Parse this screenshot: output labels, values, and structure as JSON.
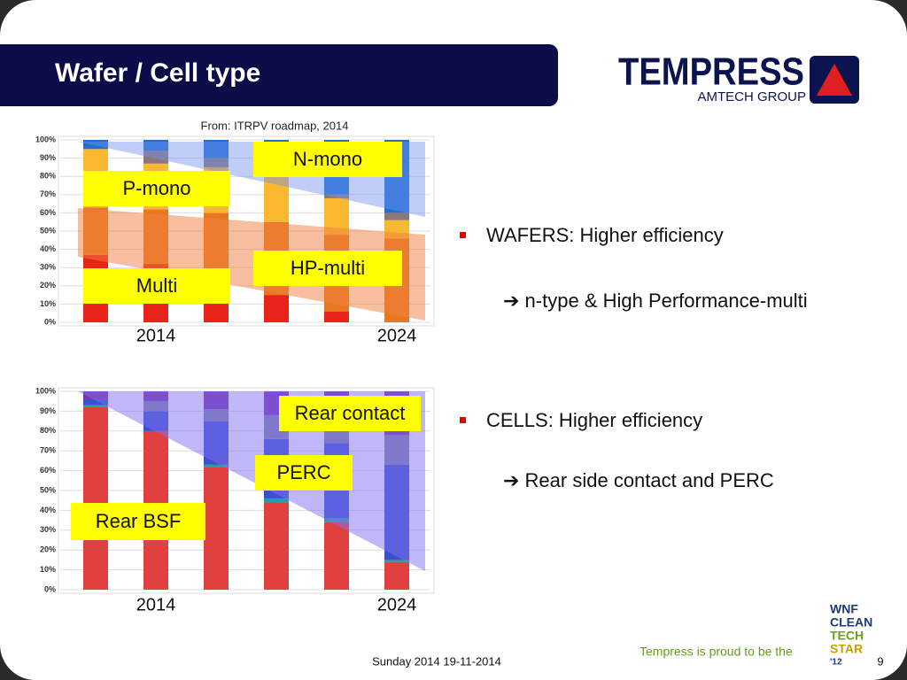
{
  "header": {
    "title": "Wafer / Cell type",
    "logo": "TEMPRESS",
    "logo_sub": "AMTECH GROUP"
  },
  "source": "From: ITRPV roadmap, 2014",
  "bullets": [
    {
      "text": "WAFERS: Higher efficiency",
      "sub": "➔ n-type &  High Performance-multi"
    },
    {
      "text": "CELLS:  Higher efficiency",
      "sub": "➔ Rear side contact and PERC"
    }
  ],
  "footer": {
    "date": "Sunday 2014 19-11-2014",
    "proud": "Tempress is proud to be the",
    "page": "9",
    "badge": [
      "WNF",
      "CLEAN",
      "TECH",
      "STAR",
      "'12"
    ]
  },
  "chart_data": [
    {
      "type": "bar",
      "stacked": true,
      "categories": [
        null,
        "2014",
        null,
        null,
        null,
        "2024"
      ],
      "ylim": [
        0,
        100
      ],
      "yticks": [
        {
          "value": 0,
          "label": "0%"
        },
        {
          "value": 10,
          "label": "10%"
        },
        {
          "value": 20,
          "label": "20%"
        },
        {
          "value": 30,
          "label": "30%"
        },
        {
          "value": 40,
          "label": "40%"
        },
        {
          "value": 50,
          "label": "50%"
        },
        {
          "value": 60,
          "label": "60%"
        },
        {
          "value": 70,
          "label": "70%"
        },
        {
          "value": 80,
          "label": "80%"
        },
        {
          "value": 90,
          "label": "90%"
        },
        {
          "value": 100,
          "label": "100%"
        }
      ],
      "grid": true,
      "series": [
        {
          "name": "Multi",
          "color": "#e8231a",
          "values": [
            37,
            32,
            20,
            15,
            6,
            0
          ]
        },
        {
          "name": "HP-multi",
          "color": "#e87820",
          "values": [
            26,
            30,
            40,
            40,
            42,
            46
          ]
        },
        {
          "name": "P-mono",
          "color": "#f8b830",
          "values": [
            32,
            25,
            25,
            25,
            20,
            10
          ]
        },
        {
          "color": "#8a7878",
          "values": [
            0,
            7,
            5,
            5,
            2,
            4
          ]
        },
        {
          "name": "N-mono",
          "color": "#2070d0",
          "values": [
            5,
            6,
            10,
            15,
            30,
            40
          ]
        }
      ]
    },
    {
      "type": "bar",
      "stacked": true,
      "categories": [
        null,
        "2014",
        null,
        null,
        null,
        "2024"
      ],
      "ylim": [
        0,
        100
      ],
      "yticks": [
        {
          "value": 0,
          "label": "0%"
        },
        {
          "value": 10,
          "label": "10%"
        },
        {
          "value": 20,
          "label": "20%"
        },
        {
          "value": 30,
          "label": "30%"
        },
        {
          "value": 40,
          "label": "40%"
        },
        {
          "value": 50,
          "label": "50%"
        },
        {
          "value": 60,
          "label": "60%"
        },
        {
          "value": 70,
          "label": "70%"
        },
        {
          "value": 80,
          "label": "80%"
        },
        {
          "value": 90,
          "label": "90%"
        },
        {
          "value": 100,
          "label": "100%"
        }
      ],
      "grid": true,
      "series": [
        {
          "name": "Rear BSF",
          "color": "#e04040",
          "values": [
            92,
            80,
            62,
            44,
            34,
            14
          ]
        },
        {
          "color": "#20a0a0",
          "values": [
            1,
            0,
            1,
            2,
            2,
            1
          ]
        },
        {
          "name": "PERC",
          "color": "#3a50d0",
          "values": [
            3,
            10,
            22,
            30,
            38,
            48
          ]
        },
        {
          "color": "#8080a0",
          "values": [
            0,
            5,
            6,
            12,
            6,
            15
          ]
        },
        {
          "name": "Rear contact",
          "color": "#7830b0",
          "values": [
            4,
            5,
            9,
            12,
            20,
            22
          ]
        }
      ]
    }
  ]
}
